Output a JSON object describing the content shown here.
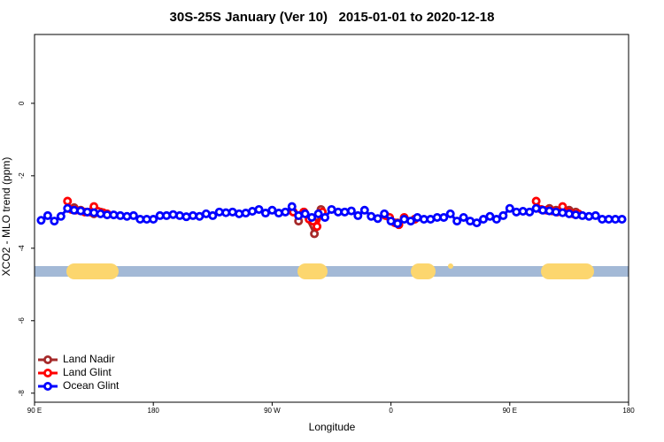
{
  "chart_data": {
    "type": "line",
    "title": "30S-25S January (Ver 10)   2015-01-01 to 2020-12-18",
    "xlabel": "Longitude",
    "ylabel": "XCO2 - MLO trend (ppm)",
    "xlim": [
      90,
      540
    ],
    "ylim": [
      -8.25,
      1.9
    ],
    "xticks": [
      {
        "value": 90,
        "label": "90 E"
      },
      180,
      {
        "value": 270,
        "label": "90 W"
      },
      {
        "value": 360,
        "label": "0"
      },
      {
        "value": 450,
        "label": "90 E"
      },
      {
        "value": 540,
        "label": "180"
      }
    ],
    "yticks": [
      0,
      -2,
      -4,
      -6,
      -8
    ],
    "legend": "bottom-left",
    "series": [
      {
        "name": "Land Nadir",
        "color": "#a52a2a",
        "x": [
          120,
          125,
          130,
          135,
          140,
          200,
          290,
          294,
          302,
          307,
          330,
          365,
          378,
          420,
          480,
          485,
          495,
          500
        ],
        "values": [
          -2.88,
          -2.95,
          -3.0,
          -3.05,
          -3.0,
          null,
          -3.25,
          -3.0,
          -3.6,
          -2.93,
          null,
          -3.3,
          -3.2,
          null,
          -2.9,
          -2.95,
          -2.95,
          -3.0
        ]
      },
      {
        "name": "Land Glint",
        "color": "#ff0000",
        "x": [
          115,
          118,
          121,
          125,
          128,
          132,
          135,
          138,
          142,
          145,
          200,
          286,
          290,
          294,
          298,
          301,
          304,
          308,
          330,
          356,
          359,
          363,
          366,
          370,
          378,
          420,
          470,
          474,
          478,
          482,
          486,
          490,
          494,
          498,
          502
        ],
        "values": [
          -2.7,
          -2.93,
          -2.95,
          -2.97,
          -3.0,
          -3.0,
          -2.85,
          -2.98,
          -3.02,
          -3.05,
          null,
          -3.0,
          -3.1,
          -3.0,
          -3.2,
          -3.25,
          -3.4,
          -3.0,
          null,
          -3.1,
          -3.15,
          -3.3,
          -3.35,
          -3.15,
          -3.2,
          null,
          -2.7,
          -2.93,
          -2.95,
          -2.97,
          -3.0,
          -2.85,
          -3.0,
          -3.05,
          -3.05
        ]
      },
      {
        "name": "Ocean Glint",
        "color": "#0000ff",
        "x": [
          95,
          100,
          105,
          110,
          115,
          120,
          125,
          130,
          135,
          140,
          145,
          150,
          155,
          160,
          165,
          170,
          175,
          180,
          185,
          190,
          195,
          200,
          205,
          210,
          215,
          220,
          225,
          230,
          235,
          240,
          245,
          250,
          255,
          260,
          265,
          270,
          275,
          280,
          285,
          290,
          295,
          300,
          305,
          310,
          315,
          320,
          325,
          330,
          335,
          340,
          345,
          350,
          355,
          360,
          365,
          370,
          375,
          380,
          385,
          390,
          395,
          400,
          405,
          410,
          415,
          420,
          425,
          430,
          435,
          440,
          445,
          450,
          455,
          460,
          465,
          470,
          475,
          480,
          485,
          490,
          495,
          500,
          505,
          510,
          515,
          520,
          525,
          530,
          535
        ],
        "values": [
          -3.23,
          -3.1,
          -3.25,
          -3.12,
          -2.9,
          -2.95,
          -2.97,
          -3.0,
          -3.02,
          -3.05,
          -3.08,
          -3.08,
          -3.1,
          -3.12,
          -3.1,
          -3.2,
          -3.2,
          -3.2,
          -3.1,
          -3.1,
          -3.07,
          -3.1,
          -3.13,
          -3.1,
          -3.12,
          -3.05,
          -3.1,
          -3.0,
          -3.02,
          -3.0,
          -3.05,
          -3.03,
          -2.98,
          -2.93,
          -3.03,
          -2.95,
          -3.03,
          -3.0,
          -2.85,
          -3.1,
          -3.05,
          -3.15,
          -3.05,
          -3.15,
          -2.93,
          -3.0,
          -3.0,
          -2.97,
          -3.1,
          -2.95,
          -3.12,
          -3.18,
          -3.05,
          -3.25,
          -3.32,
          -3.2,
          -3.25,
          -3.15,
          -3.2,
          -3.2,
          -3.15,
          -3.15,
          -3.05,
          -3.25,
          -3.15,
          -3.25,
          -3.3,
          -3.2,
          -3.12,
          -3.2,
          -3.1,
          -2.9,
          -3.0,
          -2.98,
          -3.0,
          -2.9,
          -2.95,
          -2.97,
          -3.0,
          -3.02,
          -3.05,
          -3.08,
          -3.1,
          -3.12,
          -3.1,
          -3.2,
          -3.2,
          -3.2,
          -3.2
        ]
      }
    ]
  }
}
